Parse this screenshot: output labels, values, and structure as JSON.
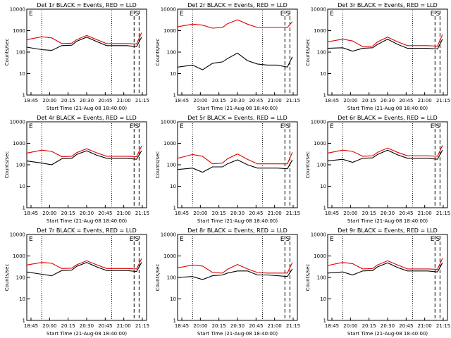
{
  "chart_data": [
    {
      "type": "line",
      "title": "Det 1r BLACK = Events, RED = LLD",
      "xlabel": "Start Time (21-Aug-08 18:40:00)",
      "ylabel": "Counts/sec",
      "x_ticks": [
        "18:45",
        "20:00",
        "20:15",
        "20:30",
        "20:45",
        "21:00",
        "21:15"
      ],
      "y_ticks": [
        "1",
        "10",
        "100",
        "1000",
        "10000"
      ],
      "ylim": [
        1,
        10000
      ],
      "yscale": "log",
      "markers": [
        "E",
        "S"
      ],
      "series": [
        {
          "color": "#000000",
          "x": [
            0,
            6,
            10,
            14,
            18,
            20,
            24,
            28,
            32,
            36,
            40,
            44,
            46
          ],
          "y": [
            170,
            130,
            120,
            200,
            210,
            320,
            500,
            310,
            200,
            200,
            200,
            180,
            500
          ]
        },
        {
          "color": "#dd0000",
          "x": [
            0,
            6,
            10,
            14,
            18,
            20,
            24,
            28,
            32,
            36,
            40,
            44,
            46
          ],
          "y": [
            380,
            520,
            460,
            250,
            260,
            380,
            600,
            380,
            250,
            250,
            250,
            240,
            800
          ]
        }
      ]
    },
    {
      "type": "line",
      "title": "Det 2r BLACK = Events, RED = LLD",
      "xlabel": "Start Time (21-Aug-08 18:40:00)",
      "ylabel": "Counts/sec",
      "x_ticks": [
        "18:45",
        "20:00",
        "20:15",
        "20:30",
        "20:45",
        "21:00",
        "21:15"
      ],
      "y_ticks": [
        "1",
        "10",
        "100",
        "1000",
        "10000"
      ],
      "ylim": [
        1,
        10000
      ],
      "yscale": "log",
      "markers": [
        "E",
        "S"
      ],
      "series": [
        {
          "color": "#000000",
          "x": [
            0,
            6,
            10,
            14,
            18,
            20,
            24,
            28,
            32,
            36,
            40,
            44,
            46
          ],
          "y": [
            20,
            25,
            15,
            30,
            35,
            50,
            90,
            40,
            28,
            25,
            25,
            20,
            60
          ]
        },
        {
          "color": "#dd0000",
          "x": [
            0,
            6,
            10,
            14,
            18,
            20,
            24,
            28,
            32,
            36,
            40,
            44,
            46
          ],
          "y": [
            1500,
            2000,
            1800,
            1300,
            1400,
            2100,
            3200,
            2000,
            1400,
            1400,
            1400,
            1400,
            2600
          ]
        }
      ]
    },
    {
      "type": "line",
      "title": "Det 3r BLACK = Events, RED = LLD",
      "xlabel": "Start Time (21-Aug-08 18:40:00)",
      "ylabel": "Counts/sec",
      "x_ticks": [
        "18:45",
        "20:00",
        "20:15",
        "20:30",
        "20:45",
        "21:00",
        "21:15"
      ],
      "y_ticks": [
        "1",
        "10",
        "100",
        "1000",
        "10000"
      ],
      "ylim": [
        1,
        10000
      ],
      "yscale": "log",
      "markers": [
        "E",
        "S"
      ],
      "series": [
        {
          "color": "#000000",
          "x": [
            0,
            6,
            10,
            14,
            18,
            20,
            24,
            28,
            32,
            36,
            40,
            44,
            46
          ],
          "y": [
            150,
            160,
            110,
            150,
            160,
            230,
            400,
            230,
            150,
            150,
            150,
            140,
            400
          ]
        },
        {
          "color": "#dd0000",
          "x": [
            0,
            6,
            10,
            14,
            18,
            20,
            24,
            28,
            32,
            36,
            40,
            44,
            46
          ],
          "y": [
            300,
            400,
            330,
            180,
            190,
            300,
            500,
            300,
            200,
            200,
            200,
            190,
            650
          ]
        }
      ]
    },
    {
      "type": "line",
      "title": "Det 4r BLACK = Events, RED = LLD",
      "xlabel": "Start Time (21-Aug-08 18:40:00)",
      "ylabel": "Counts/sec",
      "x_ticks": [
        "18:45",
        "20:00",
        "20:15",
        "20:30",
        "20:45",
        "21:00",
        "21:15"
      ],
      "y_ticks": [
        "1",
        "10",
        "100",
        "1000",
        "10000"
      ],
      "ylim": [
        1,
        10000
      ],
      "yscale": "log",
      "markers": [
        "E",
        "S"
      ],
      "series": [
        {
          "color": "#000000",
          "x": [
            0,
            6,
            10,
            14,
            18,
            20,
            24,
            28,
            32,
            36,
            40,
            44,
            46
          ],
          "y": [
            150,
            120,
            100,
            190,
            200,
            300,
            450,
            280,
            200,
            200,
            200,
            180,
            450
          ]
        },
        {
          "color": "#dd0000",
          "x": [
            0,
            6,
            10,
            14,
            18,
            20,
            24,
            28,
            32,
            36,
            40,
            44,
            46
          ],
          "y": [
            350,
            480,
            420,
            240,
            250,
            370,
            560,
            360,
            250,
            250,
            250,
            240,
            750
          ]
        }
      ]
    },
    {
      "type": "line",
      "title": "Det 5r BLACK = Events, RED = LLD",
      "xlabel": "Start Time (21-Aug-08 18:40:00)",
      "ylabel": "Counts/sec",
      "x_ticks": [
        "18:45",
        "20:00",
        "20:15",
        "20:30",
        "20:45",
        "21:00",
        "21:15"
      ],
      "y_ticks": [
        "1",
        "10",
        "100",
        "1000",
        "10000"
      ],
      "ylim": [
        1,
        10000
      ],
      "yscale": "log",
      "markers": [
        "E",
        "S"
      ],
      "series": [
        {
          "color": "#000000",
          "x": [
            0,
            6,
            10,
            14,
            18,
            20,
            24,
            28,
            32,
            36,
            40,
            44,
            46
          ],
          "y": [
            60,
            70,
            45,
            80,
            80,
            110,
            170,
            100,
            70,
            70,
            70,
            65,
            170
          ]
        },
        {
          "color": "#dd0000",
          "x": [
            0,
            6,
            10,
            14,
            18,
            20,
            24,
            28,
            32,
            36,
            40,
            44,
            46
          ],
          "y": [
            200,
            300,
            250,
            110,
            120,
            190,
            320,
            180,
            110,
            110,
            110,
            110,
            380
          ]
        }
      ]
    },
    {
      "type": "line",
      "title": "Det 6r BLACK = Events, RED = LLD",
      "xlabel": "Start Time (21-Aug-08 18:40:00)",
      "ylabel": "Counts/sec",
      "x_ticks": [
        "18:45",
        "20:00",
        "20:15",
        "20:30",
        "20:45",
        "21:00",
        "21:15"
      ],
      "y_ticks": [
        "1",
        "10",
        "100",
        "1000",
        "10000"
      ],
      "ylim": [
        1,
        10000
      ],
      "yscale": "log",
      "markers": [
        "E",
        "S"
      ],
      "series": [
        {
          "color": "#000000",
          "x": [
            0,
            6,
            10,
            14,
            18,
            20,
            24,
            28,
            32,
            36,
            40,
            44,
            46
          ],
          "y": [
            150,
            180,
            130,
            200,
            210,
            300,
            480,
            290,
            200,
            200,
            200,
            180,
            480
          ]
        },
        {
          "color": "#dd0000",
          "x": [
            0,
            6,
            10,
            14,
            18,
            20,
            24,
            28,
            32,
            36,
            40,
            44,
            46
          ],
          "y": [
            350,
            480,
            420,
            250,
            260,
            380,
            600,
            380,
            260,
            260,
            260,
            250,
            800
          ]
        }
      ]
    },
    {
      "type": "line",
      "title": "Det 7r BLACK = Events, RED = LLD",
      "xlabel": "Start Time (21-Aug-08 18:40:00)",
      "ylabel": "Counts/sec",
      "x_ticks": [
        "18:45",
        "20:00",
        "20:15",
        "20:30",
        "20:45",
        "21:00",
        "21:15"
      ],
      "y_ticks": [
        "1",
        "10",
        "100",
        "1000",
        "10000"
      ],
      "ylim": [
        1,
        10000
      ],
      "yscale": "log",
      "markers": [
        "E",
        "S"
      ],
      "series": [
        {
          "color": "#000000",
          "x": [
            0,
            6,
            10,
            14,
            18,
            20,
            24,
            28,
            32,
            36,
            40,
            44,
            46
          ],
          "y": [
            180,
            140,
            120,
            210,
            220,
            330,
            500,
            310,
            210,
            210,
            210,
            190,
            500
          ]
        },
        {
          "color": "#dd0000",
          "x": [
            0,
            6,
            10,
            14,
            18,
            20,
            24,
            28,
            32,
            36,
            40,
            44,
            46
          ],
          "y": [
            380,
            500,
            460,
            260,
            270,
            390,
            600,
            390,
            260,
            260,
            260,
            250,
            750
          ]
        }
      ]
    },
    {
      "type": "line",
      "title": "Det 8r BLACK = Events, RED = LLD",
      "xlabel": "Start Time (21-Aug-08 18:40:00)",
      "ylabel": "Counts/sec",
      "x_ticks": [
        "18:45",
        "20:00",
        "20:15",
        "20:30",
        "20:45",
        "21:00",
        "21:15"
      ],
      "y_ticks": [
        "1",
        "10",
        "100",
        "1000",
        "10000"
      ],
      "ylim": [
        1,
        10000
      ],
      "yscale": "log",
      "markers": [
        "E",
        "S"
      ],
      "series": [
        {
          "color": "#000000",
          "x": [
            0,
            6,
            10,
            14,
            18,
            20,
            24,
            28,
            32,
            36,
            40,
            44,
            46
          ],
          "y": [
            100,
            110,
            80,
            120,
            130,
            160,
            200,
            200,
            130,
            130,
            120,
            110,
            250
          ]
        },
        {
          "color": "#dd0000",
          "x": [
            0,
            6,
            10,
            14,
            18,
            20,
            24,
            28,
            32,
            36,
            40,
            44,
            46
          ],
          "y": [
            280,
            380,
            340,
            170,
            160,
            240,
            400,
            250,
            170,
            160,
            160,
            160,
            500
          ]
        }
      ]
    },
    {
      "type": "line",
      "title": "Det 9r BLACK = Events, RED = LLD",
      "xlabel": "Start Time (21-Aug-08 18:40:00)",
      "ylabel": "Counts/sec",
      "x_ticks": [
        "18:45",
        "20:00",
        "20:15",
        "20:30",
        "20:45",
        "21:00",
        "21:15"
      ],
      "y_ticks": [
        "1",
        "10",
        "100",
        "1000",
        "10000"
      ],
      "ylim": [
        1,
        10000
      ],
      "yscale": "log",
      "markers": [
        "E",
        "S"
      ],
      "series": [
        {
          "color": "#000000",
          "x": [
            0,
            6,
            10,
            14,
            18,
            20,
            24,
            28,
            32,
            36,
            40,
            44,
            46
          ],
          "y": [
            160,
            180,
            130,
            200,
            210,
            310,
            480,
            290,
            200,
            200,
            200,
            180,
            480
          ]
        },
        {
          "color": "#dd0000",
          "x": [
            0,
            6,
            10,
            14,
            18,
            20,
            24,
            28,
            32,
            36,
            40,
            44,
            46
          ],
          "y": [
            360,
            500,
            440,
            250,
            260,
            380,
            600,
            380,
            250,
            250,
            250,
            240,
            780
          ]
        }
      ]
    }
  ]
}
